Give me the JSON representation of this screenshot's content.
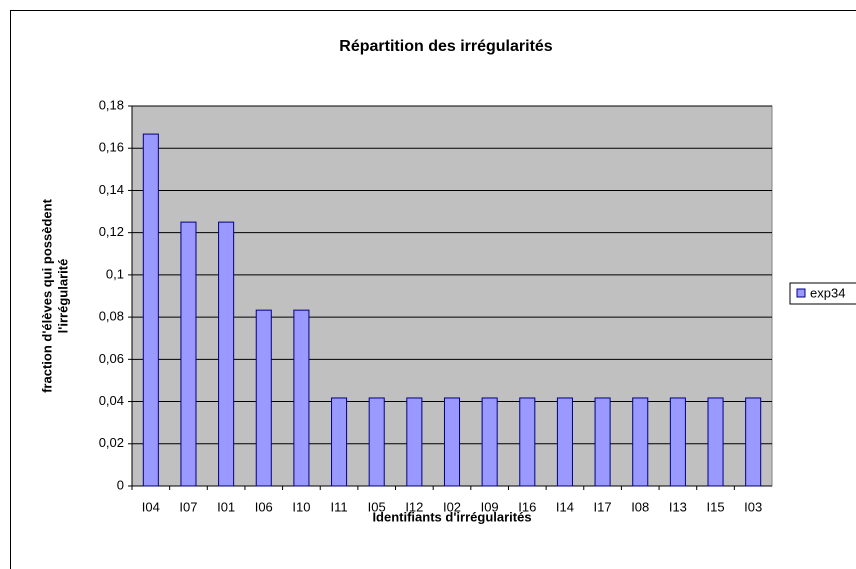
{
  "chart_data": {
    "type": "bar",
    "title": "Répartition des irrégularités",
    "xlabel": "Identifiants d'irrégularités",
    "ylabel": [
      "fraction d'élèves qui possèdent",
      "l'irrégularité"
    ],
    "categories": [
      "I04",
      "I07",
      "I01",
      "I06",
      "I10",
      "I11",
      "I05",
      "I12",
      "I02",
      "I09",
      "I16",
      "I14",
      "I17",
      "I08",
      "I13",
      "I15",
      "I03"
    ],
    "series": [
      {
        "name": "exp34",
        "color": "#9999ff",
        "values": [
          0.1667,
          0.125,
          0.125,
          0.0833,
          0.0833,
          0.0417,
          0.0417,
          0.0417,
          0.0417,
          0.0417,
          0.0417,
          0.0417,
          0.0417,
          0.0417,
          0.0417,
          0.0417,
          0.0417
        ]
      }
    ],
    "ylim": [
      0,
      0.18
    ],
    "yticks": [
      0,
      {
        "value": 0.02,
        "label": "0,02"
      },
      {
        "value": 0.04,
        "label": "0,04"
      },
      {
        "value": 0.06,
        "label": "0,06"
      },
      {
        "value": 0.08,
        "label": "0,08"
      },
      {
        "value": 0.1,
        "label": "0,1"
      },
      {
        "value": 0.12,
        "label": "0,12"
      },
      {
        "value": 0.14,
        "label": "0,14"
      },
      {
        "value": 0.16,
        "label": "0,16"
      },
      {
        "value": 0.18,
        "label": "0,18"
      }
    ],
    "grid": true,
    "legend": "right",
    "plot_background": "#c0c0c0"
  }
}
